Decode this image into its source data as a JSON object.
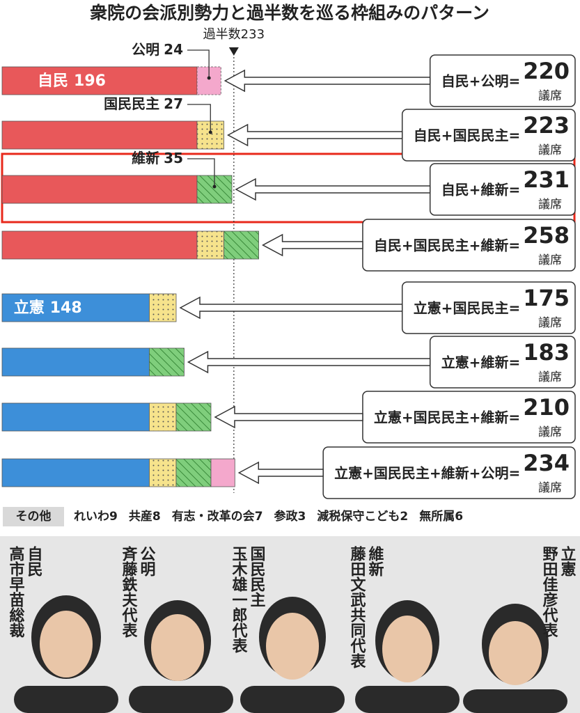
{
  "chart_data": {
    "type": "stacked-bar",
    "title": "衆院の会派別勢力と過半数を巡る枠組みのパターン",
    "majority": {
      "label": "過半数",
      "value": 233
    },
    "colors": {
      "自民": "#e8585a",
      "公明": "#f4a8cc",
      "国民民主": "#f6e38c",
      "維新": "#7fce7c",
      "立憲": "#3d8fd9"
    },
    "patterns": {
      "国民民主": "dots",
      "維新": "hatch"
    },
    "unit": "議席",
    "rows": [
      {
        "formula": "自民+公明=",
        "total": 220,
        "segments": [
          {
            "name": "自民",
            "value": 196,
            "label": "inside"
          },
          {
            "name": "公明",
            "value": 24,
            "label": "callout"
          }
        ]
      },
      {
        "formula": "自民+国民民主=",
        "total": 223,
        "segments": [
          {
            "name": "自民",
            "value": 196
          },
          {
            "name": "国民民主",
            "value": 27,
            "label": "callout"
          }
        ]
      },
      {
        "formula": "自民+維新=",
        "total": 231,
        "segments": [
          {
            "name": "自民",
            "value": 196
          },
          {
            "name": "維新",
            "value": 35,
            "label": "callout"
          }
        ]
      },
      {
        "formula": "自民+国民民主+維新=",
        "total": 258,
        "segments": [
          {
            "name": "自民",
            "value": 196
          },
          {
            "name": "国民民主",
            "value": 27
          },
          {
            "name": "維新",
            "value": 35
          }
        ]
      },
      {
        "formula": "立憲+国民民主=",
        "total": 175,
        "segments": [
          {
            "name": "立憲",
            "value": 148,
            "label": "inside"
          },
          {
            "name": "国民民主",
            "value": 27
          }
        ]
      },
      {
        "formula": "立憲+維新=",
        "total": 183,
        "segments": [
          {
            "name": "立憲",
            "value": 148
          },
          {
            "name": "維新",
            "value": 35
          }
        ]
      },
      {
        "formula": "立憲+国民民主+維新=",
        "total": 210,
        "segments": [
          {
            "name": "立憲",
            "value": 148
          },
          {
            "name": "国民民主",
            "value": 27
          },
          {
            "name": "維新",
            "value": 35
          }
        ]
      },
      {
        "formula": "立憲+国民民主+維新+公明=",
        "total": 234,
        "segments": [
          {
            "name": "立憲",
            "value": 148
          },
          {
            "name": "国民民主",
            "value": 27
          },
          {
            "name": "維新",
            "value": 35
          },
          {
            "name": "公明",
            "value": 24
          }
        ]
      }
    ],
    "others": {
      "label": "その他",
      "items": [
        {
          "name": "れいわ",
          "value": 9
        },
        {
          "name": "共産",
          "value": 8
        },
        {
          "name": "有志・改革の会",
          "value": 7
        },
        {
          "name": "参政",
          "value": 3
        },
        {
          "name": "減税保守こども",
          "value": 2
        },
        {
          "name": "無所属",
          "value": 6
        }
      ]
    }
  },
  "people": [
    {
      "party": "自民",
      "name": "高市早苗総裁"
    },
    {
      "party": "公明",
      "name": "斉藤鉄夫代表"
    },
    {
      "party": "国民民主",
      "name": "玉木雄一郎代表"
    },
    {
      "party": "維新",
      "name": "藤田文武共同代表"
    },
    {
      "party": "立憲",
      "name": "野田佳彦代表"
    }
  ]
}
